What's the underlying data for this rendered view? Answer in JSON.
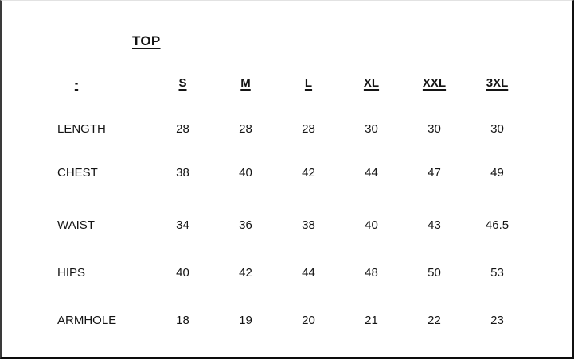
{
  "chart_data": {
    "type": "table",
    "title": "TOP",
    "corner_label": "-",
    "columns": [
      "S",
      "M",
      "L",
      "XL",
      "XXL",
      "3XL"
    ],
    "rows": [
      {
        "label": "LENGTH",
        "values": [
          "28",
          "28",
          "28",
          "30",
          "30",
          "30"
        ]
      },
      {
        "label": "CHEST",
        "values": [
          "38",
          "40",
          "42",
          "44",
          "47",
          "49"
        ]
      },
      {
        "label": "WAIST",
        "values": [
          "34",
          "36",
          "38",
          "40",
          "43",
          "46.5"
        ]
      },
      {
        "label": "HIPS",
        "values": [
          "40",
          "42",
          "44",
          "48",
          "50",
          "53"
        ]
      },
      {
        "label": "ARMHOLE",
        "values": [
          "18",
          "19",
          "20",
          "21",
          "22",
          "23"
        ]
      }
    ],
    "colors": {
      "text": "#141414",
      "background": "#ffffff",
      "border": "#101010"
    }
  }
}
